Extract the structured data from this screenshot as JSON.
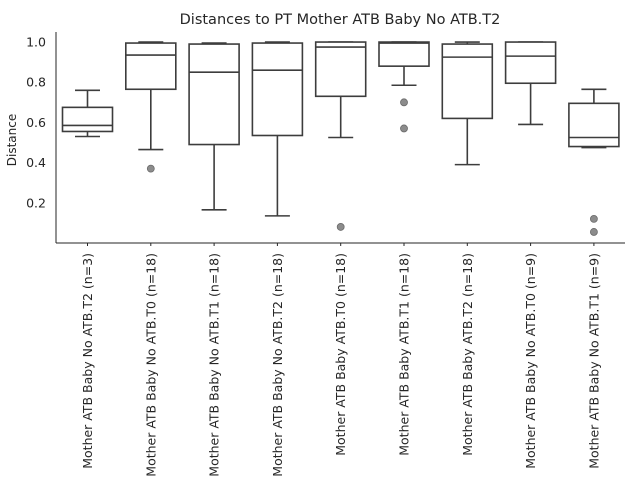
{
  "chart_data": {
    "type": "box",
    "title": "Distances to PT Mother ATB Baby No ATB.T2",
    "xlabel": "",
    "ylabel": "Distance",
    "ylim": [
      0.0,
      1.05
    ],
    "yticks": [
      "0.2",
      "0.4",
      "0.6",
      "0.8",
      "1.0"
    ],
    "grid": false,
    "categories": [
      "Mother ATB Baby No ATB.T2 (n=3)",
      "Mother ATB Baby No ATB.T0 (n=18)",
      "Mother ATB Baby No ATB.T1 (n=18)",
      "Mother ATB Baby No ATB.T2 (n=18)",
      "Mother ATB Baby ATB.T0 (n=18)",
      "Mother ATB Baby ATB.T1 (n=18)",
      "Mother ATB Baby ATB.T2 (n=18)",
      "Mother ATB Baby No ATB.T0 (n=9)",
      "Mother ATB Baby No ATB.T1 (n=9)"
    ],
    "boxes": [
      {
        "whislo": 0.53,
        "q1": 0.555,
        "med": 0.585,
        "q3": 0.675,
        "whishi": 0.76,
        "fliers": []
      },
      {
        "whislo": 0.465,
        "q1": 0.765,
        "med": 0.935,
        "q3": 0.995,
        "whishi": 1.0,
        "fliers": [
          0.37
        ]
      },
      {
        "whislo": 0.165,
        "q1": 0.49,
        "med": 0.85,
        "q3": 0.99,
        "whishi": 0.995,
        "fliers": []
      },
      {
        "whislo": 0.135,
        "q1": 0.535,
        "med": 0.86,
        "q3": 0.995,
        "whishi": 1.0,
        "fliers": []
      },
      {
        "whislo": 0.525,
        "q1": 0.73,
        "med": 0.975,
        "q3": 1.0,
        "whishi": 1.0,
        "fliers": [
          0.08
        ]
      },
      {
        "whislo": 0.785,
        "q1": 0.88,
        "med": 0.995,
        "q3": 1.0,
        "whishi": 1.0,
        "fliers": [
          0.7,
          0.57
        ]
      },
      {
        "whislo": 0.39,
        "q1": 0.62,
        "med": 0.925,
        "q3": 0.99,
        "whishi": 1.0,
        "fliers": []
      },
      {
        "whislo": 0.59,
        "q1": 0.795,
        "med": 0.93,
        "q3": 1.0,
        "whishi": 1.0,
        "fliers": []
      },
      {
        "whislo": 0.475,
        "q1": 0.48,
        "med": 0.525,
        "q3": 0.695,
        "whishi": 0.765,
        "fliers": [
          0.12,
          0.055
        ]
      }
    ],
    "colors": {
      "box_edge": "#3d3d3d",
      "box_fill": "#ffffff",
      "flier": "#8c8c8c",
      "text": "#262626"
    }
  }
}
